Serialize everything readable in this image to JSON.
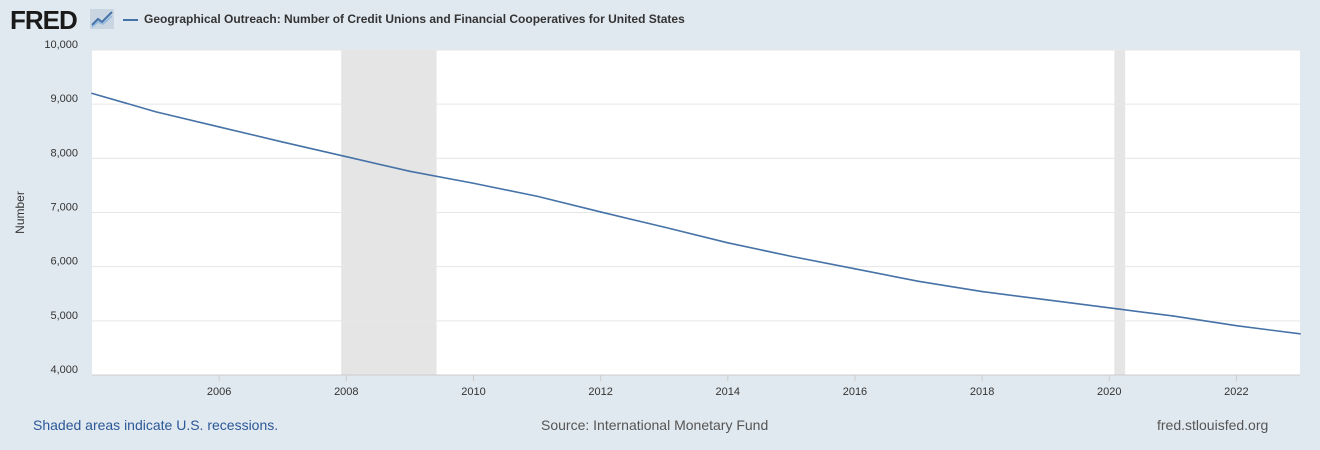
{
  "header": {
    "logo_text": "FRED",
    "logo_icon": "trend-line-icon"
  },
  "footer": {
    "left_text": "Shaded areas indicate U.S. recessions.",
    "center_text": "Source: International Monetary Fund",
    "right_text": "fred.stlouisfed.org"
  },
  "colors": {
    "background": "#e1e9f0",
    "plot_background": "#ffffff",
    "series_line": "#4572a7",
    "recession_shade": "#e5e5e5",
    "footer_link": "#2b5797"
  },
  "chart_data": {
    "type": "line",
    "title": "Geographical Outreach: Number of Credit Unions and Financial Cooperatives for United States",
    "xlabel": "",
    "ylabel": "Number",
    "xlim": [
      2004,
      2023
    ],
    "ylim": [
      4000,
      10000
    ],
    "x_ticks": [
      2006,
      2008,
      2010,
      2012,
      2014,
      2016,
      2018,
      2020,
      2022
    ],
    "y_ticks": [
      4000,
      5000,
      6000,
      7000,
      8000,
      9000,
      10000
    ],
    "y_tick_labels": [
      "4,000",
      "5,000",
      "6,000",
      "7,000",
      "8,000",
      "9,000",
      "10,000"
    ],
    "grid": "horizontal",
    "legend": "top-left",
    "recessions": [
      [
        2007.92,
        2009.42
      ],
      [
        2020.08,
        2020.25
      ]
    ],
    "series": [
      {
        "name": "Geographical Outreach: Number of Credit Unions and Financial Cooperatives for United States",
        "x": [
          2004,
          2005,
          2006,
          2007,
          2008,
          2009,
          2010,
          2011,
          2012,
          2013,
          2014,
          2015,
          2016,
          2017,
          2018,
          2019,
          2020,
          2021,
          2022,
          2023
        ],
        "values": [
          9200,
          8860,
          8580,
          8300,
          8030,
          7760,
          7540,
          7300,
          7010,
          6730,
          6440,
          6190,
          5960,
          5730,
          5540,
          5390,
          5240,
          5090,
          4910,
          4760
        ]
      }
    ]
  }
}
